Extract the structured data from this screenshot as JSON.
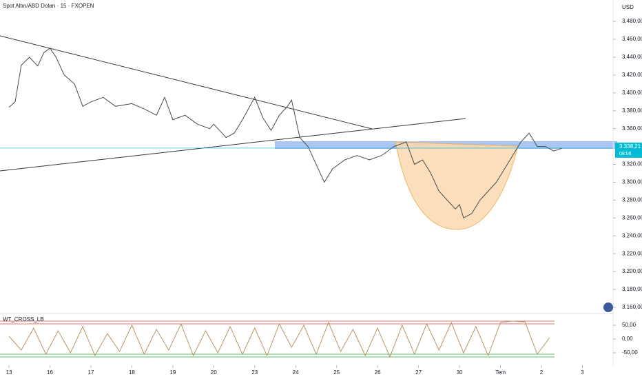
{
  "chart_data": [
    {
      "type": "line",
      "title": "Spot Altın/ABD Doları · 15 · FXOPEN",
      "currency": "USD",
      "x": [
        0,
        0.15,
        0.3,
        0.5,
        0.7,
        0.85,
        1.0,
        1.15,
        1.35,
        1.6,
        1.8,
        2.0,
        2.3,
        2.6,
        3.0,
        3.3,
        3.6,
        3.8,
        4.0,
        4.3,
        4.6,
        4.9,
        5.0,
        5.3,
        5.5,
        5.7,
        6.0,
        6.2,
        6.4,
        6.6,
        6.8,
        6.9,
        7.1,
        7.3,
        7.5,
        7.7,
        7.9,
        8.2,
        8.5,
        8.8,
        9.1,
        9.4,
        9.7,
        9.9,
        10.1,
        10.3,
        10.5,
        10.7,
        10.9,
        11.0,
        11.1,
        11.3,
        11.5,
        11.7,
        11.9,
        12.1,
        12.3,
        12.5,
        12.7,
        12.9,
        13.1,
        13.3,
        13.5
      ],
      "values": [
        3384,
        3390,
        3431,
        3440,
        3430,
        3445,
        3450,
        3440,
        3420,
        3410,
        3385,
        3390,
        3395,
        3385,
        3388,
        3382,
        3375,
        3395,
        3370,
        3375,
        3365,
        3360,
        3365,
        3350,
        3355,
        3370,
        3395,
        3372,
        3358,
        3375,
        3385,
        3392,
        3350,
        3340,
        3320,
        3300,
        3315,
        3325,
        3330,
        3325,
        3330,
        3340,
        3345,
        3320,
        3325,
        3310,
        3290,
        3280,
        3270,
        3275,
        3260,
        3265,
        3280,
        3290,
        3300,
        3315,
        3330,
        3345,
        3355,
        3340,
        3340,
        3335,
        3338
      ],
      "color": "#4a4a4a",
      "xlim": [
        -0.22,
        14.75
      ],
      "xticks": [
        {
          "value": 0,
          "label": "13"
        },
        {
          "value": 1,
          "label": "16"
        },
        {
          "value": 2,
          "label": "17"
        },
        {
          "value": 3,
          "label": "18"
        },
        {
          "value": 4,
          "label": "19"
        },
        {
          "value": 5,
          "label": "20"
        },
        {
          "value": 6,
          "label": "23"
        },
        {
          "value": 7,
          "label": "24"
        },
        {
          "value": 8,
          "label": "25"
        },
        {
          "value": 9,
          "label": "26"
        },
        {
          "value": 10,
          "label": "27"
        },
        {
          "value": 11,
          "label": "30"
        },
        {
          "value": 12,
          "label": "Tem"
        },
        {
          "value": 13,
          "label": "2"
        },
        {
          "value": 14,
          "label": "3"
        }
      ],
      "ylim": [
        3153,
        3504
      ],
      "yticks": [
        {
          "value": 3480,
          "label": "3.480,00"
        },
        {
          "value": 3460,
          "label": "3.460,00"
        },
        {
          "value": 3440,
          "label": "3.440,00"
        },
        {
          "value": 3420,
          "label": "3.420,00"
        },
        {
          "value": 3400,
          "label": "3.400,00"
        },
        {
          "value": 3380,
          "label": "3.380,00"
        },
        {
          "value": 3360,
          "label": "3.360,00"
        },
        {
          "value": 3320,
          "label": "3.320,00"
        },
        {
          "value": 3300,
          "label": "3.300,00"
        },
        {
          "value": 3280,
          "label": "3.280,00"
        },
        {
          "value": 3260,
          "label": "3.260,00"
        },
        {
          "value": 3240,
          "label": "3.240,00"
        },
        {
          "value": 3220,
          "label": "3.220,00"
        },
        {
          "value": 3200,
          "label": "3.200,00"
        },
        {
          "value": 3180,
          "label": "3.180,00"
        },
        {
          "value": 3160,
          "label": "3.160,00"
        }
      ],
      "last_price": {
        "value": 3338.21,
        "label": "3.338,21"
      },
      "countdown": "08:06"
    },
    {
      "type": "line",
      "title": "WT_CROSS_LB",
      "x": [
        0,
        0.3,
        0.6,
        0.9,
        1.2,
        1.5,
        1.8,
        2.1,
        2.4,
        2.7,
        3.0,
        3.3,
        3.6,
        3.9,
        4.2,
        4.5,
        4.8,
        5.1,
        5.4,
        5.7,
        6.0,
        6.3,
        6.6,
        6.9,
        7.2,
        7.5,
        7.8,
        8.1,
        8.4,
        8.7,
        9.0,
        9.3,
        9.6,
        9.9,
        10.2,
        10.5,
        10.8,
        11.1,
        11.4,
        11.7,
        12.0,
        12.3,
        12.6,
        12.9,
        13.2
      ],
      "values": [
        10,
        -40,
        40,
        -55,
        30,
        -50,
        45,
        -60,
        20,
        -45,
        50,
        -55,
        35,
        -40,
        55,
        -60,
        30,
        -50,
        45,
        -55,
        40,
        -60,
        55,
        -30,
        50,
        -55,
        60,
        -45,
        35,
        -60,
        40,
        -65,
        50,
        -55,
        55,
        -40,
        60,
        -50,
        45,
        -60,
        60,
        65,
        62,
        -55,
        5
      ],
      "color": "#b8956a",
      "xlim": [
        -0.22,
        14.75
      ],
      "ylim": [
        -82.5,
        87.5
      ],
      "yticks": [
        {
          "value": 50,
          "label": "50,00"
        },
        {
          "value": 0,
          "label": "0,00"
        },
        {
          "value": -50,
          "label": "-50,00"
        }
      ]
    }
  ]
}
